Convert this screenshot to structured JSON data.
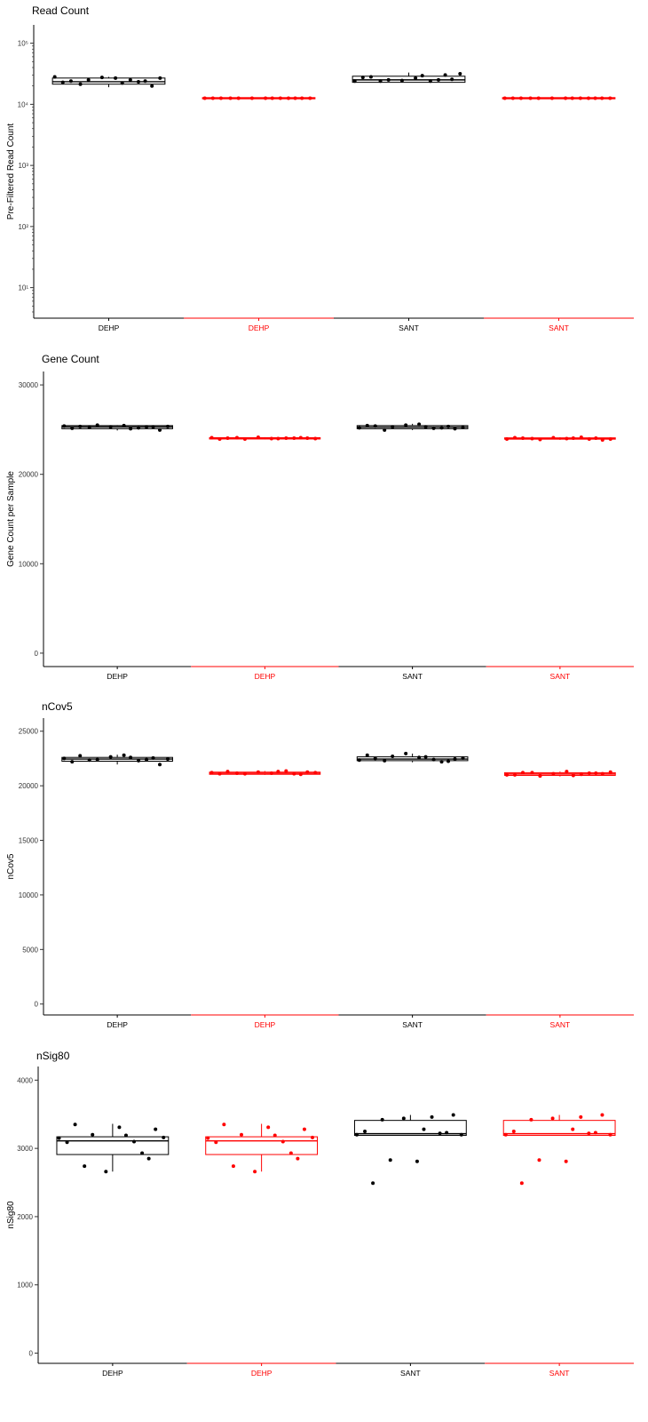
{
  "chart_data": [
    {
      "type": "box",
      "title": "Read Count",
      "ylabel": "Pre-Filtered Read Count",
      "yscale": "log10",
      "ylim": [
        0.5,
        5.3
      ],
      "yticks": [
        1,
        2,
        3,
        4,
        5
      ],
      "yticklabels": [
        "10¹",
        "10²",
        "10³",
        "10⁴",
        "10⁵"
      ],
      "categories": [
        "DEHP",
        "DEHP",
        "SANT",
        "SANT"
      ],
      "category_colors": [
        "#000000",
        "#ff0000",
        "#000000",
        "#ff0000"
      ],
      "boxes": [
        {
          "q1": 4.33,
          "median": 4.37,
          "q3": 4.43,
          "whisker_low": 4.28,
          "whisker_high": 4.45
        },
        {
          "q1": 4.09,
          "median": 4.1,
          "q3": 4.11,
          "whisker_low": 4.09,
          "whisker_high": 4.11
        },
        {
          "q1": 4.36,
          "median": 4.4,
          "q3": 4.46,
          "whisker_low": 4.36,
          "whisker_high": 4.52
        },
        {
          "q1": 4.09,
          "median": 4.1,
          "q3": 4.11,
          "whisker_low": 4.09,
          "whisker_high": 4.11
        }
      ],
      "points": [
        [
          4.45,
          4.38,
          4.4,
          4.44,
          4.43,
          4.4,
          4.38,
          4.43,
          4.36,
          4.3,
          4.33,
          4.35,
          4.37
        ],
        [
          4.1,
          4.1,
          4.1,
          4.1,
          4.1,
          4.1,
          4.1,
          4.1,
          4.1,
          4.1,
          4.1,
          4.1,
          4.1
        ],
        [
          4.38,
          4.45,
          4.4,
          4.39,
          4.43,
          4.38,
          4.48,
          4.5,
          4.44,
          4.41,
          4.38,
          4.47,
          4.4
        ],
        [
          4.1,
          4.1,
          4.1,
          4.1,
          4.1,
          4.1,
          4.1,
          4.1,
          4.1,
          4.1,
          4.1,
          4.1,
          4.1
        ]
      ]
    },
    {
      "type": "box",
      "title": "Gene Count",
      "ylabel": "Gene Count per Sample",
      "yscale": "linear",
      "ylim": [
        -1500,
        31500
      ],
      "yticks": [
        0,
        10000,
        20000,
        30000
      ],
      "yticklabels": [
        "0",
        "10000",
        "20000",
        "30000"
      ],
      "categories": [
        "DEHP",
        "DEHP",
        "SANT",
        "SANT"
      ],
      "category_colors": [
        "#000000",
        "#ff0000",
        "#000000",
        "#ff0000"
      ],
      "boxes": [
        {
          "q1": 25100,
          "median": 25300,
          "q3": 25450,
          "whisker_low": 24900,
          "whisker_high": 25500
        },
        {
          "q1": 23950,
          "median": 24020,
          "q3": 24100,
          "whisker_low": 23900,
          "whisker_high": 24150
        },
        {
          "q1": 25100,
          "median": 25280,
          "q3": 25450,
          "whisker_low": 24950,
          "whisker_high": 25650
        },
        {
          "q1": 23930,
          "median": 24000,
          "q3": 24080,
          "whisker_low": 23850,
          "whisker_high": 24150
        }
      ],
      "points": [
        [
          25400,
          25350,
          25500,
          25300,
          25450,
          25200,
          25300,
          25350,
          25150,
          24950,
          25250,
          25100,
          25300
        ],
        [
          24100,
          24050,
          23950,
          24150,
          24000,
          24050,
          24100,
          24000,
          23950,
          24050,
          24100,
          24000,
          24050
        ],
        [
          25200,
          25400,
          25300,
          25500,
          25600,
          25150,
          25350,
          25250,
          25450,
          25100,
          24950,
          25300,
          25200
        ],
        [
          23950,
          24050,
          23900,
          24100,
          24000,
          24150,
          24050,
          23950,
          24100,
          23850,
          24000,
          24050,
          23950
        ]
      ]
    },
    {
      "type": "box",
      "title": "nCov5",
      "ylabel": "nCov5",
      "yscale": "linear",
      "ylim": [
        -1000,
        26200
      ],
      "yticks": [
        0,
        5000,
        10000,
        15000,
        20000,
        25000
      ],
      "yticklabels": [
        "0",
        "5000",
        "10000",
        "15000",
        "20000",
        "25000"
      ],
      "categories": [
        "DEHP",
        "DEHP",
        "SANT",
        "SANT"
      ],
      "category_colors": [
        "#000000",
        "#ff0000",
        "#000000",
        "#ff0000"
      ],
      "boxes": [
        {
          "q1": 22250,
          "median": 22450,
          "q3": 22600,
          "whisker_low": 21950,
          "whisker_high": 22850
        },
        {
          "q1": 21050,
          "median": 21150,
          "q3": 21250,
          "whisker_low": 21000,
          "whisker_high": 21350
        },
        {
          "q1": 22300,
          "median": 22450,
          "q3": 22650,
          "whisker_low": 22150,
          "whisker_high": 22950
        },
        {
          "q1": 20950,
          "median": 21080,
          "q3": 21200,
          "whisker_low": 20850,
          "whisker_high": 21300
        }
      ],
      "points": [
        [
          22500,
          22750,
          22400,
          22650,
          22800,
          22300,
          22550,
          22450,
          22200,
          21950,
          22350,
          22600,
          22400
        ],
        [
          21200,
          21300,
          21100,
          21250,
          21150,
          21350,
          21050,
          21200,
          21100,
          21250,
          21150,
          21300,
          21100
        ],
        [
          22350,
          22500,
          22700,
          22950,
          22600,
          22400,
          22250,
          22550,
          22800,
          22450,
          22300,
          22650,
          22200
        ],
        [
          21000,
          21200,
          20900,
          21100,
          21300,
          21050,
          21150,
          21250,
          21000,
          21100,
          21200,
          20950,
          21150
        ]
      ]
    },
    {
      "type": "box",
      "title": "nSig80",
      "ylabel": "nSig80",
      "yscale": "linear",
      "ylim": [
        -150,
        4200
      ],
      "yticks": [
        0,
        1000,
        2000,
        3000,
        4000
      ],
      "yticklabels": [
        "0",
        "1000",
        "2000",
        "3000",
        "4000"
      ],
      "categories": [
        "DEHP",
        "DEHP",
        "SANT",
        "SANT"
      ],
      "category_colors": [
        "#000000",
        "#ff0000",
        "#000000",
        "#ff0000"
      ],
      "boxes": [
        {
          "q1": 2910,
          "median": 3110,
          "q3": 3170,
          "whisker_low": 2660,
          "whisker_high": 3360
        },
        {
          "q1": 2910,
          "median": 3110,
          "q3": 3170,
          "whisker_low": 2660,
          "whisker_high": 3360
        },
        {
          "q1": 3190,
          "median": 3215,
          "q3": 3410,
          "whisker_low": 3190,
          "whisker_high": 3490
        },
        {
          "q1": 3190,
          "median": 3215,
          "q3": 3410,
          "whisker_low": 3190,
          "whisker_high": 3490
        }
      ],
      "points": [
        [
          3150,
          3350,
          3200,
          2660,
          3310,
          3100,
          2850,
          3160,
          3090,
          3280,
          2740,
          3190,
          2930
        ],
        [
          3150,
          3350,
          3200,
          2660,
          3310,
          3100,
          2850,
          3160,
          3090,
          3280,
          2740,
          3190,
          2930
        ],
        [
          3200,
          2490,
          2830,
          3440,
          2810,
          3460,
          3230,
          3200,
          3250,
          3490,
          3420,
          3280,
          3220
        ],
        [
          3200,
          2490,
          2830,
          3440,
          2810,
          3460,
          3230,
          3200,
          3250,
          3490,
          3420,
          3280,
          3220
        ]
      ]
    }
  ]
}
